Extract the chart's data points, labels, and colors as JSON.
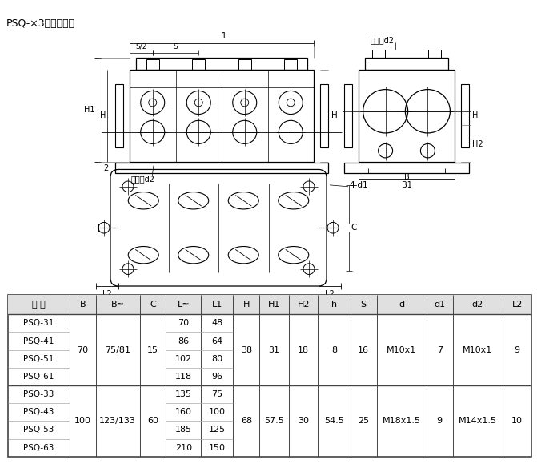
{
  "title": "PSQ-×3系列外形图",
  "table_headers": [
    "型 号",
    "B",
    "B≈",
    "C",
    "L≈",
    "L1",
    "H",
    "H1",
    "H2",
    "h",
    "S",
    "d",
    "d1",
    "d2",
    "L2"
  ],
  "group1_rows": [
    [
      "PSQ-31",
      "70",
      "75/81",
      "15",
      "70",
      "48",
      "38",
      "31",
      "18",
      "8",
      "16",
      "M10x1",
      "7",
      "M10x1",
      "9"
    ],
    [
      "PSQ-41",
      "70",
      "75/81",
      "15",
      "86",
      "64",
      "38",
      "31",
      "18",
      "8",
      "16",
      "M10x1",
      "7",
      "M10x1",
      "9"
    ],
    [
      "PSQ-51",
      "70",
      "75/81",
      "15",
      "102",
      "80",
      "38",
      "31",
      "18",
      "8",
      "16",
      "M10x1",
      "7",
      "M10x1",
      "9"
    ],
    [
      "PSQ-61",
      "70",
      "75/81",
      "15",
      "118",
      "96",
      "38",
      "31",
      "18",
      "8",
      "16",
      "M10x1",
      "7",
      "M10x1",
      "9"
    ]
  ],
  "group2_rows": [
    [
      "PSQ-33",
      "100",
      "123/133",
      "60",
      "135",
      "75",
      "68",
      "57.5",
      "30",
      "54.5",
      "25",
      "M18x1.5",
      "9",
      "M14x1.5",
      "10"
    ],
    [
      "PSQ-43",
      "100",
      "123/133",
      "60",
      "160",
      "100",
      "68",
      "57.5",
      "30",
      "54.5",
      "25",
      "M18x1.5",
      "9",
      "M14x1.5",
      "10"
    ],
    [
      "PSQ-53",
      "100",
      "123/133",
      "60",
      "185",
      "125",
      "68",
      "57.5",
      "30",
      "54.5",
      "25",
      "M18x1.5",
      "9",
      "M14x1.5",
      "10"
    ],
    [
      "PSQ-63",
      "100",
      "123/133",
      "60",
      "210",
      "150",
      "68",
      "57.5",
      "30",
      "54.5",
      "25",
      "M18x1.5",
      "9",
      "M14x1.5",
      "10"
    ]
  ],
  "col_widths": [
    10.5,
    4.5,
    7.5,
    4.5,
    6,
    5.5,
    4.5,
    5,
    5,
    5.5,
    4.5,
    8.5,
    4.5,
    8.5,
    5
  ],
  "bg_color": "#ffffff",
  "border_color": "#444444",
  "text_color": "#000000",
  "header_bg": "#e0e0e0",
  "font_size": 8.0,
  "title_font_size": 9.0
}
